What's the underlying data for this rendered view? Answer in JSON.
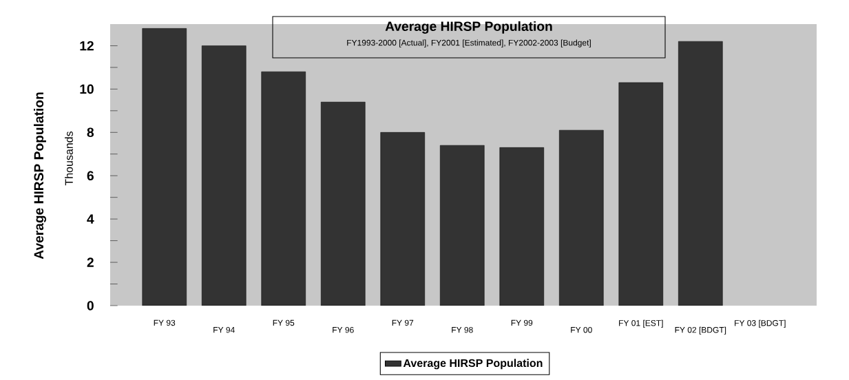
{
  "chart_data": {
    "type": "bar",
    "title": "Average HIRSP Population",
    "subtitle": "FY1993-2000 [Actual], FY2001 [Estimated], FY2002-2003 [Budget]",
    "ylabel": "Average HIRSP Population",
    "annotations": [
      "Thousands"
    ],
    "categories": [
      "FY 93",
      "FY 94",
      "FY 95",
      "FY 96",
      "FY 97",
      "FY 98",
      "FY 99",
      "FY 00",
      "FY 01 [EST]",
      "FY 02 [BDGT]",
      "FY 03 [BDGT]"
    ],
    "series": [
      {
        "name": "Average HIRSP Population",
        "color": "#333333",
        "values": [
          12.8,
          12.0,
          10.8,
          9.4,
          8.0,
          7.4,
          7.3,
          8.1,
          10.3,
          12.2,
          null
        ]
      }
    ],
    "ylim": [
      0,
      13
    ],
    "yticks": [
      0,
      {
        "value": 1,
        "label": null
      },
      2,
      {
        "value": 3,
        "label": null
      },
      4,
      {
        "value": 5,
        "label": null
      },
      6,
      {
        "value": 7,
        "label": null
      },
      8,
      {
        "value": 9,
        "label": null
      },
      10,
      {
        "value": 11,
        "label": null
      },
      12
    ],
    "legend": "bottom"
  }
}
